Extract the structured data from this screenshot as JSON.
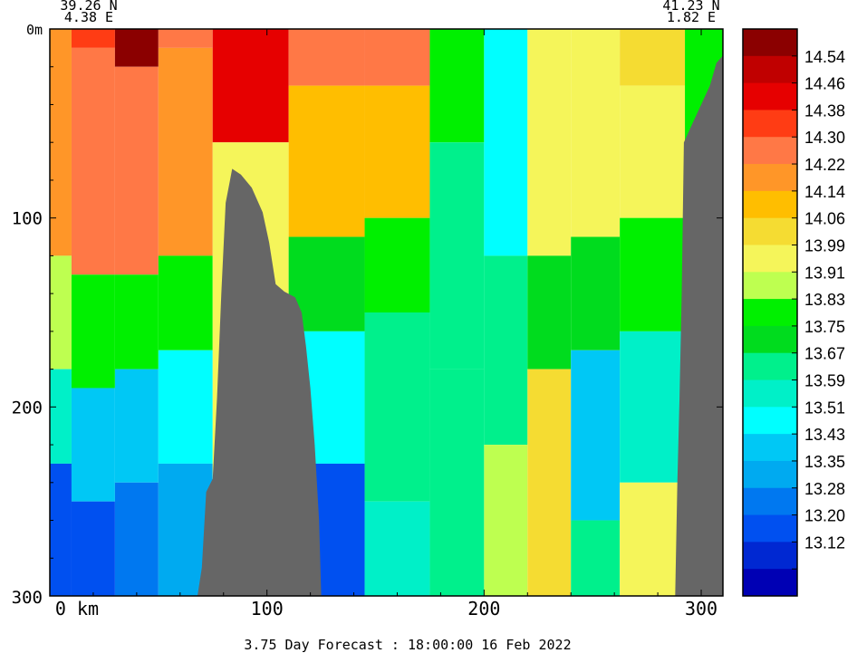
{
  "chart_data": {
    "type": "heatmap",
    "title": "",
    "footer": "3.75 Day Forecast : 18:00:00  16 Feb 2022",
    "start_point": {
      "lat": "39.26 N",
      "lon": "4.38 E"
    },
    "end_point": {
      "lat": "41.23 N",
      "lon": "1.82 E"
    },
    "xlim": [
      0,
      310
    ],
    "ylim": [
      300,
      0
    ],
    "x_ticks": [
      {
        "value": 0,
        "label": "0 km"
      },
      {
        "value": 100,
        "label": "100"
      },
      {
        "value": 200,
        "label": "200"
      },
      {
        "value": 300,
        "label": "300"
      }
    ],
    "y_ticks": [
      {
        "value": 0,
        "label": "0m"
      },
      {
        "value": 100,
        "label": "100"
      },
      {
        "value": 200,
        "label": "200"
      },
      {
        "value": 300,
        "label": "300"
      }
    ],
    "colorbar": {
      "labels": [
        "14.54",
        "14.46",
        "14.38",
        "14.30",
        "14.22",
        "14.14",
        "14.06",
        "13.99",
        "13.91",
        "13.83",
        "13.75",
        "13.67",
        "13.59",
        "13.51",
        "13.43",
        "13.35",
        "13.28",
        "13.20",
        "13.12"
      ],
      "colors": [
        "#8b0000",
        "#c00000",
        "#e60000",
        "#ff3c14",
        "#ff7846",
        "#ff9628",
        "#ffbe00",
        "#f5dc32",
        "#f5f55a",
        "#beff50",
        "#00f000",
        "#00dc1e",
        "#00f08c",
        "#00f0c8",
        "#00ffff",
        "#00c8f5",
        "#00aaf0",
        "#0078f0",
        "#0050f0",
        "#0028d2",
        "#0000b4"
      ]
    },
    "topography": [
      {
        "x": 68,
        "depth": 300
      },
      {
        "x": 70,
        "depth": 285
      },
      {
        "x": 72,
        "depth": 245
      },
      {
        "x": 75,
        "depth": 238
      },
      {
        "x": 77,
        "depth": 195
      },
      {
        "x": 79,
        "depth": 140
      },
      {
        "x": 81,
        "depth": 92
      },
      {
        "x": 84,
        "depth": 74
      },
      {
        "x": 88,
        "depth": 77
      },
      {
        "x": 93,
        "depth": 84
      },
      {
        "x": 98,
        "depth": 97
      },
      {
        "x": 101,
        "depth": 113
      },
      {
        "x": 104,
        "depth": 135
      },
      {
        "x": 108,
        "depth": 139
      },
      {
        "x": 113,
        "depth": 142
      },
      {
        "x": 116,
        "depth": 150
      },
      {
        "x": 118,
        "depth": 168
      },
      {
        "x": 120,
        "depth": 190
      },
      {
        "x": 122,
        "depth": 220
      },
      {
        "x": 124,
        "depth": 260
      },
      {
        "x": 125,
        "depth": 300
      }
    ],
    "topography_right": [
      {
        "x": 288,
        "depth": 300
      },
      {
        "x": 289,
        "depth": 240
      },
      {
        "x": 290,
        "depth": 195
      },
      {
        "x": 291,
        "depth": 140
      },
      {
        "x": 292,
        "depth": 60
      },
      {
        "x": 296,
        "depth": 50
      },
      {
        "x": 300,
        "depth": 40
      },
      {
        "x": 304,
        "depth": 30
      },
      {
        "x": 307,
        "depth": 18
      },
      {
        "x": 310,
        "depth": 14
      },
      {
        "x": 310,
        "depth": 300
      }
    ],
    "depth_profiles": [
      {
        "x": 0,
        "layers": [
          {
            "to": 120,
            "level": 5
          },
          {
            "to": 180,
            "level": 9
          },
          {
            "to": 230,
            "level": 13
          },
          {
            "to": 300,
            "level": 18
          }
        ]
      },
      {
        "x": 20,
        "layers": [
          {
            "to": 10,
            "level": 3
          },
          {
            "to": 130,
            "level": 4
          },
          {
            "to": 190,
            "level": 10
          },
          {
            "to": 250,
            "level": 15
          },
          {
            "to": 300,
            "level": 18
          }
        ]
      },
      {
        "x": 40,
        "layers": [
          {
            "to": 20,
            "level": 0
          },
          {
            "to": 130,
            "level": 4
          },
          {
            "to": 180,
            "level": 10
          },
          {
            "to": 240,
            "level": 15
          },
          {
            "to": 300,
            "level": 17
          }
        ]
      },
      {
        "x": 60,
        "layers": [
          {
            "to": 10,
            "level": 4
          },
          {
            "to": 120,
            "level": 5
          },
          {
            "to": 170,
            "level": 10
          },
          {
            "to": 230,
            "level": 14
          },
          {
            "to": 300,
            "level": 16
          }
        ]
      },
      {
        "x": 90,
        "layers": [
          {
            "to": 60,
            "level": 2
          },
          {
            "to": 300,
            "level": 8
          }
        ]
      },
      {
        "x": 130,
        "layers": [
          {
            "to": 30,
            "level": 4
          },
          {
            "to": 110,
            "level": 6
          },
          {
            "to": 160,
            "level": 11
          },
          {
            "to": 230,
            "level": 14
          },
          {
            "to": 300,
            "level": 18
          }
        ]
      },
      {
        "x": 160,
        "layers": [
          {
            "to": 30,
            "level": 4
          },
          {
            "to": 100,
            "level": 6
          },
          {
            "to": 150,
            "level": 10
          },
          {
            "to": 250,
            "level": 12
          },
          {
            "to": 300,
            "level": 13
          }
        ]
      },
      {
        "x": 190,
        "layers": [
          {
            "to": 60,
            "level": 10
          },
          {
            "to": 180,
            "level": 12
          },
          {
            "to": 300,
            "level": 12
          }
        ]
      },
      {
        "x": 210,
        "layers": [
          {
            "to": 120,
            "level": 14
          },
          {
            "to": 220,
            "level": 12
          },
          {
            "to": 300,
            "level": 9
          }
        ]
      },
      {
        "x": 230,
        "layers": [
          {
            "to": 120,
            "level": 8
          },
          {
            "to": 180,
            "level": 11
          },
          {
            "to": 300,
            "level": 7
          }
        ]
      },
      {
        "x": 250,
        "layers": [
          {
            "to": 110,
            "level": 8
          },
          {
            "to": 170,
            "level": 11
          },
          {
            "to": 260,
            "level": 15
          },
          {
            "to": 300,
            "level": 12
          }
        ]
      },
      {
        "x": 275,
        "layers": [
          {
            "to": 30,
            "level": 7
          },
          {
            "to": 100,
            "level": 8
          },
          {
            "to": 160,
            "level": 10
          },
          {
            "to": 240,
            "level": 13
          },
          {
            "to": 300,
            "level": 8
          }
        ]
      },
      {
        "x": 310,
        "layers": [
          {
            "to": 300,
            "level": 10
          }
        ]
      }
    ]
  }
}
